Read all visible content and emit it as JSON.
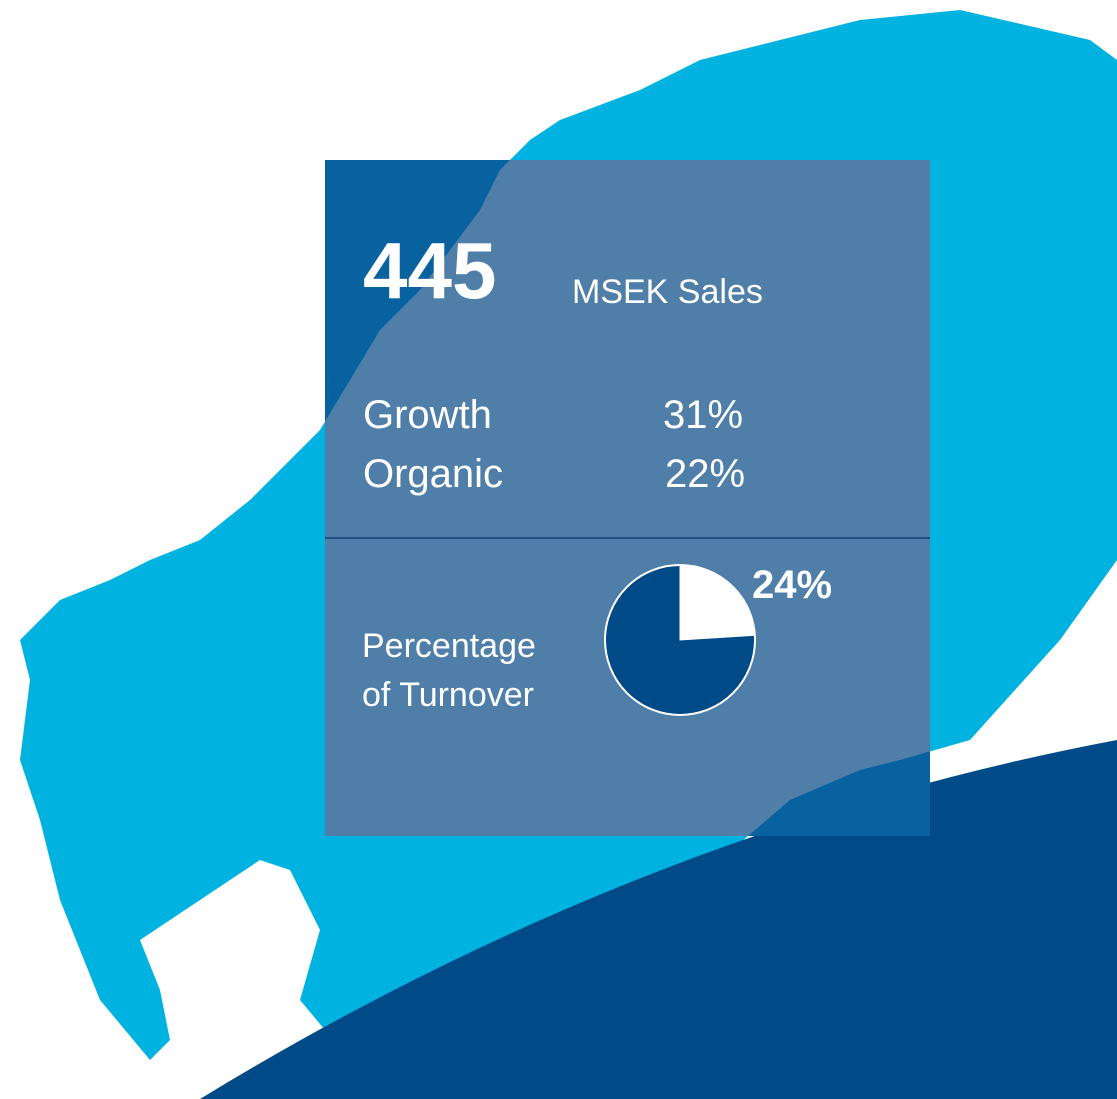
{
  "sales": {
    "value": 445,
    "label": "MSEK Sales"
  },
  "stats": [
    {
      "label": "Growth",
      "value": "31%"
    },
    {
      "label": "Organic",
      "value": "22%"
    }
  ],
  "turnover": {
    "label_lines": [
      "Percentage",
      "of Turnover"
    ],
    "value": 24,
    "value_label": "24%"
  }
}
